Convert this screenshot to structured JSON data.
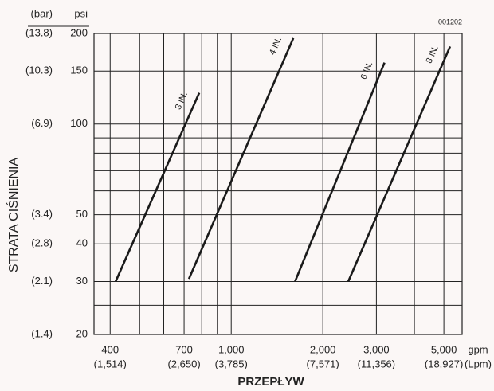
{
  "chart_data": {
    "type": "line",
    "code": "001202",
    "y_unit_secondary": "(bar)",
    "y_unit": "psi",
    "x_unit": "gpm",
    "x_unit_secondary": "(Lpm)",
    "ylabel": "STRATA CIŚNIENIA",
    "xlabel": "PRZEPŁYW",
    "log_x": true,
    "log_y": true,
    "grid": true,
    "xlim": [
      354,
      5740
    ],
    "ylim": [
      20,
      200
    ],
    "xticks": [
      400,
      700,
      {
        "value": 1000,
        "label": "1,000"
      },
      {
        "value": 2000,
        "label": "2,000"
      },
      {
        "value": 3000,
        "label": "3,000"
      },
      {
        "value": 5000,
        "label": "5,000"
      }
    ],
    "xtick_secondary_labels": [
      "(1,514)",
      "(2,650)",
      "(3,785)",
      "(7,571)",
      "(11,356)",
      "(18,927)"
    ],
    "xminor": [
      500,
      600,
      800,
      900,
      4000
    ],
    "yticks": [
      20,
      30,
      40,
      50,
      100,
      150,
      200
    ],
    "ytick_secondary_labels": [
      "(1.4)",
      "(2.1)",
      "(2.8)",
      "(3.4)",
      "(6.9)",
      "(10.3)",
      "(13.8)"
    ],
    "yminor": [
      25,
      60,
      70,
      80,
      90
    ],
    "series": [
      {
        "name": "3 IN.",
        "color": "#1a1a1a",
        "x": [
          417,
          785
        ],
        "values": [
          30,
          127
        ]
      },
      {
        "name": "4 IN.",
        "color": "#1a1a1a",
        "x": [
          726,
          1600
        ],
        "values": [
          30.6,
          193
        ]
      },
      {
        "name": "6 IN.",
        "color": "#1a1a1a",
        "x": [
          1621,
          3190
        ],
        "values": [
          30,
          160
        ]
      },
      {
        "name": "8 IN.",
        "color": "#1a1a1a",
        "x": [
          2425,
          5240
        ],
        "values": [
          30,
          181
        ]
      }
    ]
  }
}
